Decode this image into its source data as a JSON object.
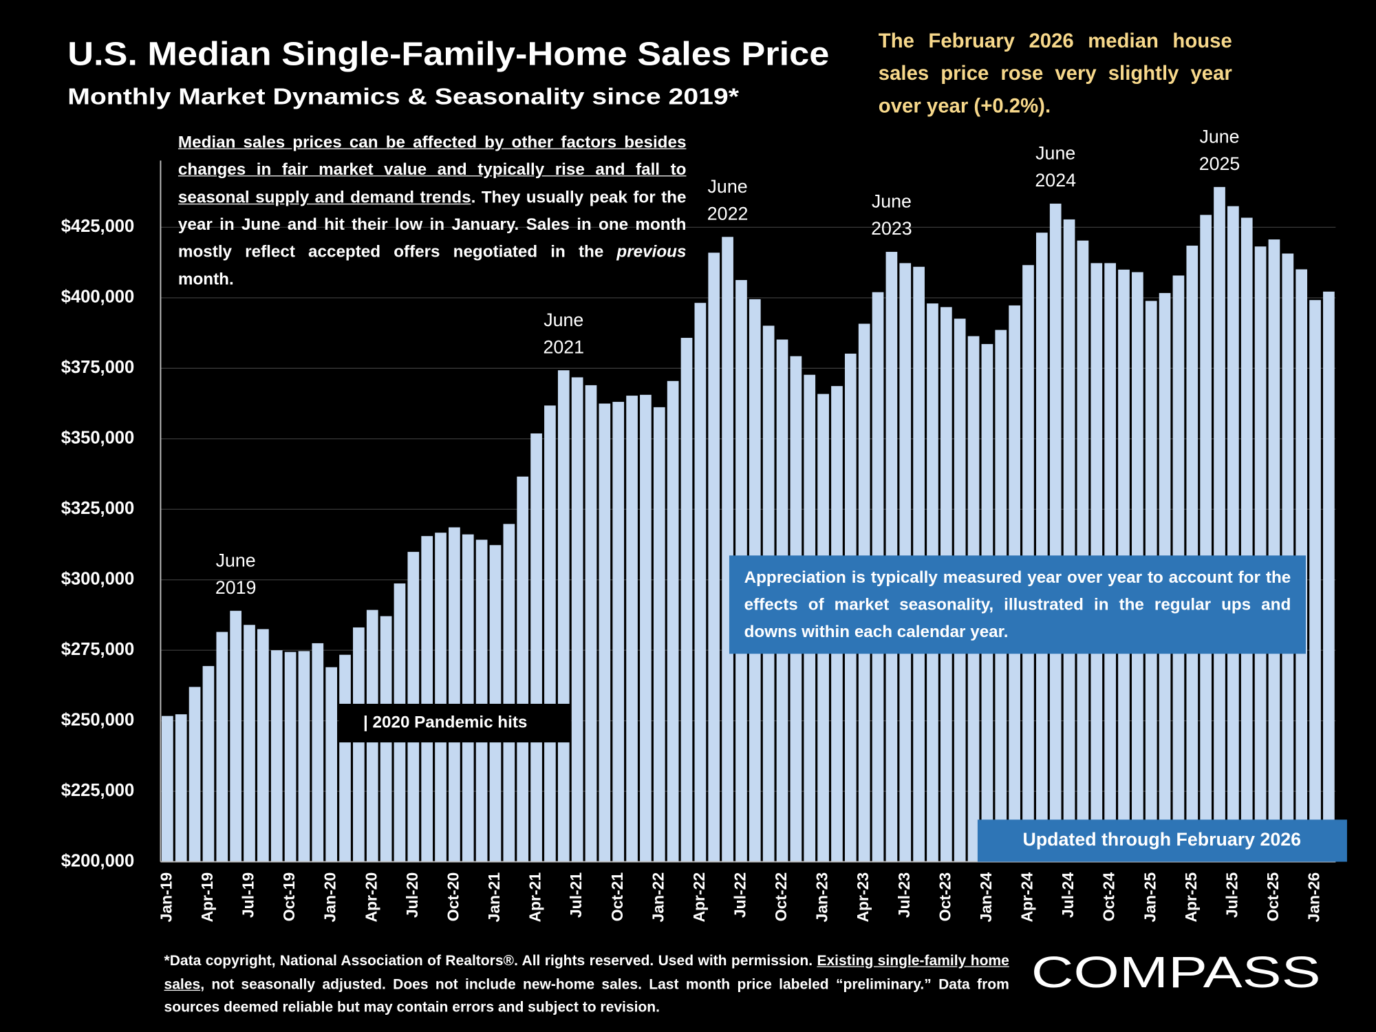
{
  "chart_data": {
    "type": "bar",
    "title": "U.S. Median Single-Family-Home Sales Price",
    "subtitle": "Monthly Market Dynamics & Seasonality since 2019*",
    "headline_note": "The February 2026 median house sales price rose very slightly year over year (+0.2%).",
    "note": {
      "underlined": "Median sales prices can be affected by other factors besides changes in fair market value and typically rise and fall to seasonal supply and demand trends",
      "text1": ". They usually peak for the year in June and hit their low in January. Sales in one month mostly reflect accepted offers negotiated in the ",
      "italic": "previous",
      "text2": " month."
    },
    "peak_labels": [
      [
        "June",
        "2019"
      ],
      [
        "June",
        "2021"
      ],
      [
        "June",
        "2022"
      ],
      [
        "June",
        "2023"
      ],
      [
        "June",
        "2024"
      ],
      [
        "June",
        "2025"
      ]
    ],
    "callout": "Appreciation is typically measured year over year to account for the effects of market seasonality, illustrated in the regular ups and downs within each calendar year.",
    "event_label": "| 2020 Pandemic hits",
    "update_label": "Updated through February 2026",
    "footnote": {
      "text1": "*Data copyright, National Association of Realtors®. All rights reserved. Used with permission. ",
      "underlined": "Existing single-family home sales",
      "text2": ", not seasonally adjusted. Does not include new-home sales. Last month price labeled “preliminary.” Data from sources deemed reliable but may contain errors and subject to revision."
    },
    "logo": "COMPASS",
    "categories": [
      "Jan-19",
      null,
      null,
      "Apr-19",
      null,
      null,
      "Jul-19",
      null,
      null,
      "Oct-19",
      null,
      null,
      "Jan-20",
      null,
      null,
      "Apr-20",
      null,
      null,
      "Jul-20",
      null,
      null,
      "Oct-20",
      null,
      null,
      "Jan-21",
      null,
      null,
      "Apr-21",
      null,
      null,
      "Jul-21",
      null,
      null,
      "Oct-21",
      null,
      null,
      "Jan-22",
      null,
      null,
      "Apr-22",
      null,
      null,
      "Jul-22",
      null,
      null,
      "Oct-22",
      null,
      null,
      "Jan-23",
      null,
      null,
      "Apr-23",
      null,
      null,
      "Jul-23",
      null,
      null,
      "Oct-23",
      null,
      null,
      "Jan-24",
      null,
      null,
      "Apr-24",
      null,
      null,
      "Jul-24",
      null,
      null,
      "Oct-24",
      null,
      null,
      "Jan-25",
      null,
      null,
      "Apr-25",
      null,
      null,
      "Jul-25",
      null,
      null,
      "Oct-25",
      null,
      null,
      "Jan-26",
      null
    ],
    "values": [
      251700,
      252300,
      262000,
      269400,
      281500,
      289000,
      284000,
      282500,
      275000,
      274400,
      274700,
      277500,
      269000,
      273400,
      283100,
      289300,
      287100,
      298700,
      309900,
      315500,
      316700,
      318600,
      316100,
      314200,
      312300,
      319800,
      336600,
      351900,
      361800,
      374300,
      371800,
      369000,
      362500,
      363100,
      365300,
      365600,
      361200,
      370500,
      385800,
      398200,
      416000,
      421600,
      406300,
      399500,
      390100,
      385200,
      379300,
      372700,
      365900,
      368700,
      380200,
      390800,
      402000,
      416300,
      412300,
      411000,
      398000,
      396700,
      392600,
      386400,
      383600,
      388600,
      397300,
      411600,
      423100,
      433400,
      427800,
      420300,
      412300,
      412300,
      410000,
      409100,
      398900,
      401700,
      407900,
      418500,
      429400,
      439300,
      432500,
      428400,
      418200,
      420700,
      415700,
      410100,
      399200,
      402200
    ],
    "color": "#c5d9f1",
    "ylim": [
      200000,
      450000
    ],
    "yticks": [
      {
        "value": 200000,
        "label": "$200,000"
      },
      {
        "value": 225000,
        "label": "$225,000"
      },
      {
        "value": 250000,
        "label": "$250,000"
      },
      {
        "value": 275000,
        "label": "$275,000"
      },
      {
        "value": 300000,
        "label": "$300,000"
      },
      {
        "value": 325000,
        "label": "$325,000"
      },
      {
        "value": 350000,
        "label": "$350,000"
      },
      {
        "value": 375000,
        "label": "$375,000"
      },
      {
        "value": 400000,
        "label": "$400,000"
      },
      {
        "value": 425000,
        "label": "$425,000"
      }
    ],
    "grid": true
  }
}
